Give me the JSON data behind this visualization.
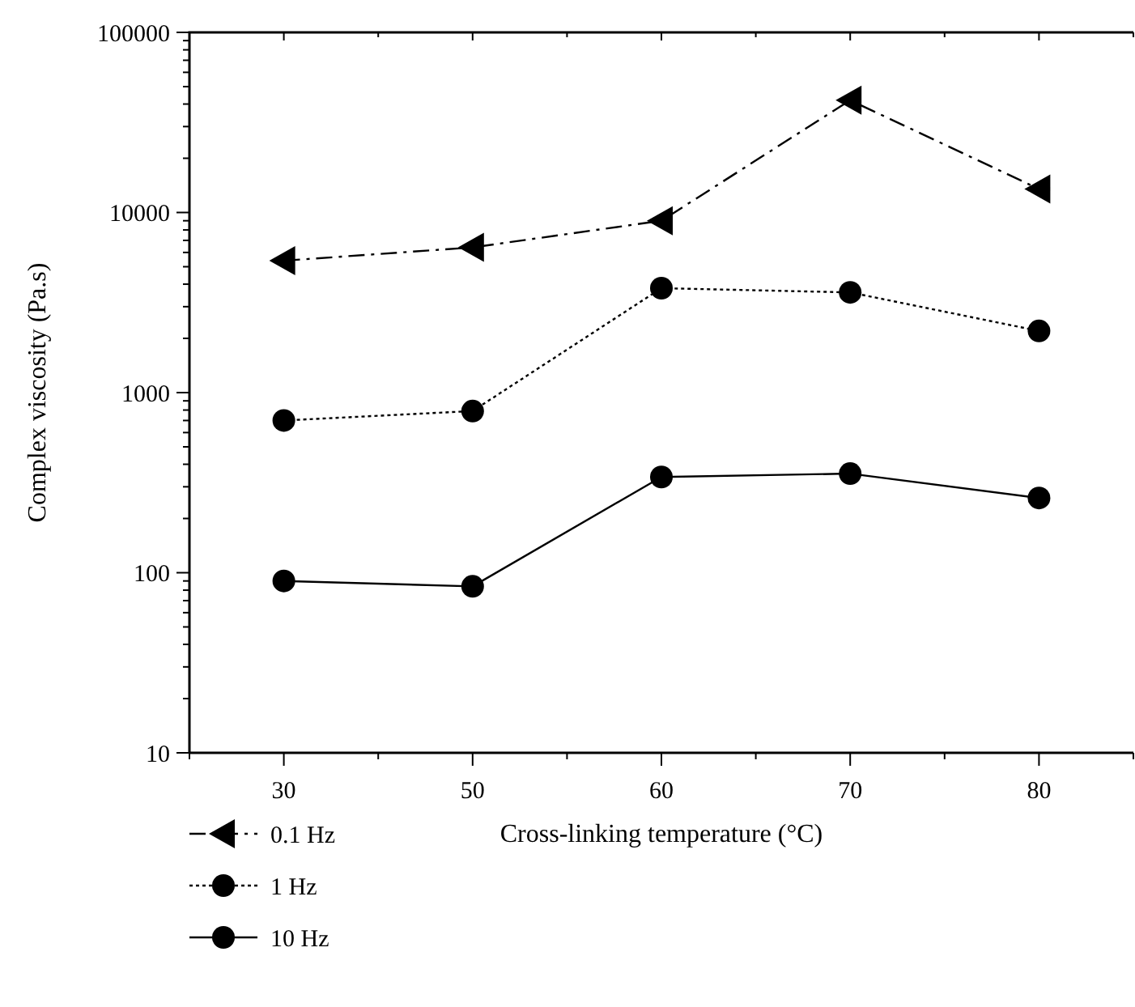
{
  "chart_data": {
    "type": "line",
    "xlabel": "Cross-linking temperature (°C)",
    "ylabel": "Complex viscosity (Pa.s)",
    "categories": [
      "30",
      "50",
      "60",
      "70",
      "80"
    ],
    "log": true,
    "ylim": [
      10,
      100000
    ],
    "yticks": [
      10,
      100,
      1000,
      10000,
      100000
    ],
    "grid": false,
    "legend": "bottom left",
    "series": [
      {
        "name": "0.1 Hz",
        "color": "#000000",
        "marker": "triangle",
        "line_style": "dashed",
        "values": [
          5400,
          6400,
          9000,
          42000,
          13500
        ]
      },
      {
        "name": "1 Hz",
        "color": "#000000",
        "marker": "circle",
        "line_style": "dotted",
        "values": [
          700,
          790,
          3800,
          3600,
          2200
        ]
      },
      {
        "name": "10 Hz",
        "color": "#000000",
        "marker": "circle",
        "line_style": "solid",
        "values": [
          90,
          84,
          340,
          355,
          260
        ]
      }
    ]
  }
}
